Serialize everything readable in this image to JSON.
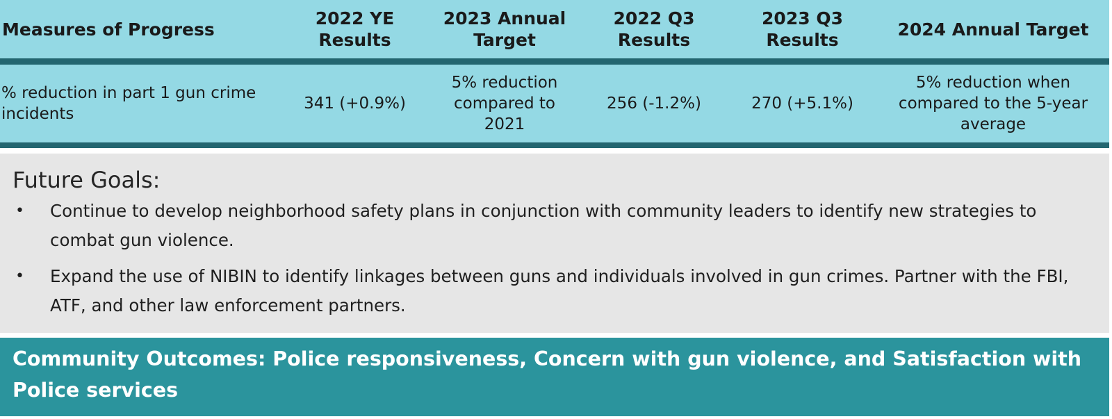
{
  "measures_table": {
    "headers": [
      "Measures of Progress",
      "2022 YE Results",
      "2023 Annual Target",
      "2022 Q3 Results",
      "2023 Q3 Results",
      "2024 Annual Target"
    ],
    "row": [
      "% reduction in part 1 gun crime incidents",
      "341 (+0.9%)",
      "5% reduction compared to 2021",
      "256 (-1.2%)",
      "270 (+5.1%)",
      "5% reduction when compared to the 5-year average"
    ]
  },
  "future_goals": {
    "title": "Future Goals:",
    "bullet_symbol": "•",
    "items": [
      "Continue to develop neighborhood safety plans in conjunction with community leaders to identify new strategies to combat gun violence.",
      "Expand the use of NIBIN to identify  linkages between guns and individuals involved in gun crimes. Partner with the FBI, ATF, and other law enforcement partners."
    ]
  },
  "community_outcomes": {
    "text": "Community Outcomes: Police responsiveness, Concern with gun violence, and Satisfaction with Police services"
  },
  "colors": {
    "table_bg": "#94d9e4",
    "table_rule": "#236670",
    "goals_bg": "#e6e6e6",
    "outcomes_bg": "#2b949d"
  }
}
